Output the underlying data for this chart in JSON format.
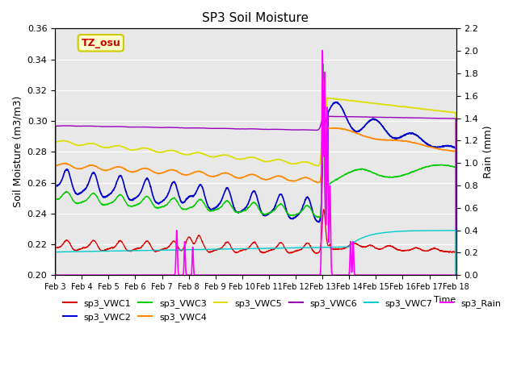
{
  "title": "SP3 Soil Moisture",
  "ylabel_left": "Soil Moisture (m3/m3)",
  "ylabel_right": "Rain (mm)",
  "xlabel": "Time",
  "ylim_left": [
    0.2,
    0.36
  ],
  "ylim_right": [
    0.0,
    2.2
  ],
  "x_tick_labels": [
    "Feb 3",
    "Feb 4",
    "Feb 5",
    "Feb 6",
    "Feb 7",
    "Feb 8",
    "Feb 9",
    "Feb 10",
    "Feb 11",
    "Feb 12",
    "Feb 13",
    "Feb 14",
    "Feb 15",
    "Feb 16",
    "Feb 17",
    "Feb 18"
  ],
  "annotation_text": "TZ_osu",
  "annotation_color": "#cc0000",
  "annotation_bg": "#ffffcc",
  "annotation_border": "#cccc00",
  "background_color": "#e8e8e8",
  "colors": {
    "VWC1": "#dd0000",
    "VWC2": "#0000cc",
    "VWC3": "#00cc00",
    "VWC4": "#ff8800",
    "VWC5": "#dddd00",
    "VWC6": "#9900bb",
    "VWC7": "#00cccc",
    "Rain": "#ff00ff"
  }
}
